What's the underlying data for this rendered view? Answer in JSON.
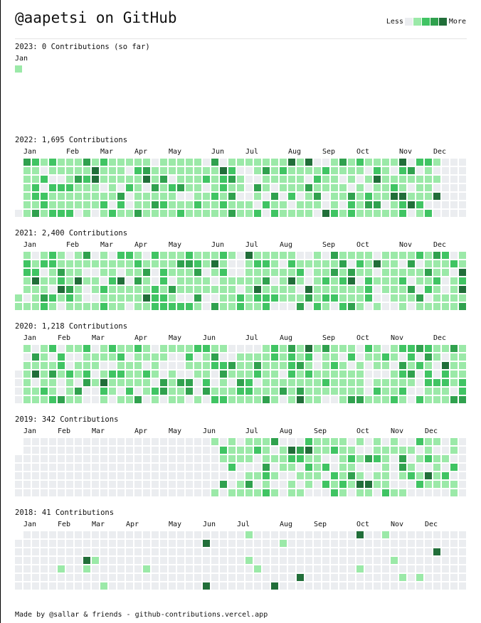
{
  "header": {
    "title": "@aapetsi on GitHub",
    "legend_less": "Less",
    "legend_more": "More"
  },
  "colors": [
    "#ebedf0",
    "#9be9a8",
    "#40c463",
    "#30a14e",
    "#216e39"
  ],
  "years": [
    {
      "title": "2023: 0 Contributions (so far)",
      "months": [
        {
          "label": "Jan",
          "week": 0
        }
      ],
      "first_weekday": 0,
      "weeks": 1,
      "active": [
        [
          0,
          0
        ],
        [
          0,
          0
        ]
      ]
    },
    {
      "title": "2022: 1,695 Contributions",
      "months": [
        {
          "label": "Jan",
          "week": 1
        },
        {
          "label": "Feb",
          "week": 6
        },
        {
          "label": "Mar",
          "week": 10
        },
        {
          "label": "Apr",
          "week": 14
        },
        {
          "label": "May",
          "week": 18
        },
        {
          "label": "Jun",
          "week": 23
        },
        {
          "label": "Jul",
          "week": 27
        },
        {
          "label": "Aug",
          "week": 32
        },
        {
          "label": "Sep",
          "week": 36
        },
        {
          "label": "Oct",
          "week": 40
        },
        {
          "label": "Nov",
          "week": 45
        },
        {
          "label": "Dec",
          "week": 49
        }
      ],
      "first_weekday": 6,
      "weeks": 53,
      "active": [
        [
          1,
          49
        ],
        [
          1,
          51
        ]
      ]
    },
    {
      "title": "2021: 2,400 Contributions",
      "months": [
        {
          "label": "Jan",
          "week": 1
        },
        {
          "label": "Feb",
          "week": 6
        },
        {
          "label": "Mar",
          "week": 10
        },
        {
          "label": "Apr",
          "week": 14
        },
        {
          "label": "May",
          "week": 18
        },
        {
          "label": "Jun",
          "week": 23
        },
        {
          "label": "Jul",
          "week": 27
        },
        {
          "label": "Aug",
          "week": 31
        },
        {
          "label": "Sep",
          "week": 36
        },
        {
          "label": "Oct",
          "week": 40
        },
        {
          "label": "Nov",
          "week": 45
        },
        {
          "label": "Dec",
          "week": 49
        }
      ],
      "first_weekday": 5,
      "weeks": 53,
      "active": [
        [
          0,
          52
        ],
        [
          0,
          52
        ]
      ]
    },
    {
      "title": "2020: 1,218 Contributions",
      "months": [
        {
          "label": "Jan",
          "week": 1
        },
        {
          "label": "Feb",
          "week": 5
        },
        {
          "label": "Mar",
          "week": 9
        },
        {
          "label": "Apr",
          "week": 14
        },
        {
          "label": "May",
          "week": 18
        },
        {
          "label": "Jun",
          "week": 22
        },
        {
          "label": "Jul",
          "week": 27
        },
        {
          "label": "Aug",
          "week": 31
        },
        {
          "label": "Sep",
          "week": 36
        },
        {
          "label": "Oct",
          "week": 40
        },
        {
          "label": "Nov",
          "week": 44
        },
        {
          "label": "Dec",
          "week": 49
        }
      ],
      "first_weekday": 3,
      "weeks": 53,
      "active": [
        [
          1,
          52
        ],
        [
          1,
          52
        ]
      ]
    },
    {
      "title": "2019: 342 Contributions",
      "months": [
        {
          "label": "Jan",
          "week": 1
        },
        {
          "label": "Feb",
          "week": 5
        },
        {
          "label": "Mar",
          "week": 9
        },
        {
          "label": "Apr",
          "week": 14
        },
        {
          "label": "May",
          "week": 18
        },
        {
          "label": "Jun",
          "week": 22
        },
        {
          "label": "Jul",
          "week": 27
        },
        {
          "label": "Aug",
          "week": 31
        },
        {
          "label": "Sep",
          "week": 35
        },
        {
          "label": "Oct",
          "week": 40
        },
        {
          "label": "Nov",
          "week": 44
        },
        {
          "label": "Dec",
          "week": 48
        }
      ],
      "first_weekday": 2,
      "weeks": 53,
      "active": [
        [
          23,
          51
        ],
        [
          23,
          51
        ]
      ]
    },
    {
      "title": "2018: 41 Contributions",
      "months": [
        {
          "label": "Jan",
          "week": 1
        },
        {
          "label": "Feb",
          "week": 5
        },
        {
          "label": "Mar",
          "week": 9
        },
        {
          "label": "Apr",
          "week": 13
        },
        {
          "label": "May",
          "week": 18
        },
        {
          "label": "Jun",
          "week": 22
        },
        {
          "label": "Jul",
          "week": 26
        },
        {
          "label": "Aug",
          "week": 31
        },
        {
          "label": "Sep",
          "week": 35
        },
        {
          "label": "Oct",
          "week": 40
        },
        {
          "label": "Nov",
          "week": 44
        },
        {
          "label": "Dec",
          "week": 48
        }
      ],
      "first_weekday": 1,
      "weeks": 53,
      "active": [
        [
          3,
          50
        ],
        [
          3,
          50
        ]
      ]
    }
  ],
  "footer": "Made by @sallar & friends - github-contributions.vercel.app"
}
